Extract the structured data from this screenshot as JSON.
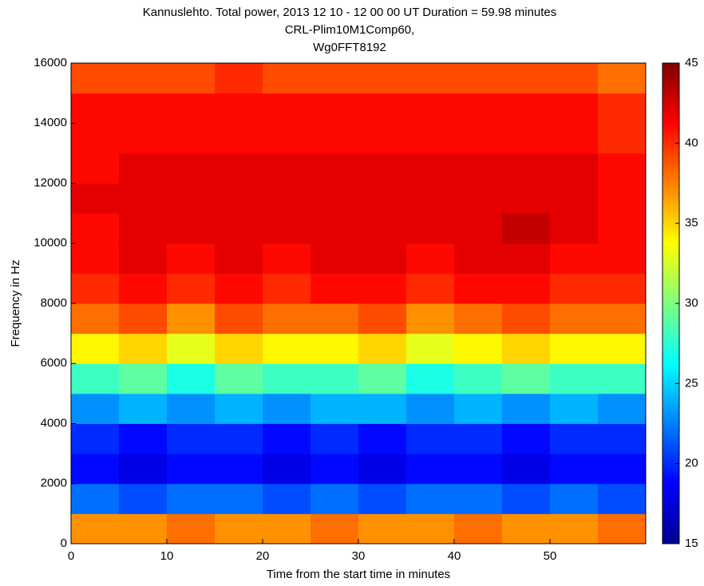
{
  "chart_data": {
    "type": "heatmap",
    "title": [
      "Kannuslehto. Total power, 2013 12 10 - 12 00 00 UT  Duration = 59.98 minutes",
      "CRL-Plim10M1Comp60,",
      "Wg0FFT8192"
    ],
    "x_label": "Time from the start time in minutes",
    "y_label": "Frequency in Hz",
    "colormap": "jet",
    "x_bins": [
      0,
      5,
      10,
      15,
      20,
      25,
      30,
      35,
      40,
      45,
      50,
      55,
      60
    ],
    "y_bins": [
      0,
      1000,
      2000,
      3000,
      4000,
      5000,
      6000,
      7000,
      8000,
      9000,
      10000,
      11000,
      12000,
      13000,
      14000,
      15000,
      16000
    ],
    "z": [
      [
        37,
        37,
        38,
        37,
        37,
        38,
        37,
        37,
        38,
        37,
        37,
        38
      ],
      [
        22,
        21,
        22,
        22,
        21,
        22,
        21,
        22,
        22,
        21,
        22,
        21
      ],
      [
        19,
        18,
        19,
        19,
        18,
        19,
        18,
        19,
        19,
        18,
        19,
        19
      ],
      [
        20,
        19,
        20,
        20,
        19,
        20,
        19,
        20,
        20,
        19,
        20,
        20
      ],
      [
        23,
        24,
        23,
        24,
        23,
        24,
        24,
        23,
        24,
        23,
        24,
        23
      ],
      [
        28,
        29,
        27,
        29,
        28,
        28,
        29,
        27,
        28,
        29,
        28,
        28
      ],
      [
        34,
        35,
        33,
        35,
        34,
        34,
        35,
        33,
        34,
        35,
        34,
        34
      ],
      [
        38,
        39,
        37,
        39,
        38,
        38,
        39,
        37,
        38,
        39,
        38,
        38
      ],
      [
        40,
        41,
        40,
        41,
        40,
        41,
        41,
        40,
        41,
        41,
        40,
        40
      ],
      [
        41,
        42,
        41,
        42,
        41,
        42,
        42,
        41,
        42,
        42,
        41,
        41
      ],
      [
        41,
        42,
        42,
        42,
        42,
        42,
        42,
        42,
        42,
        43,
        42,
        41
      ],
      [
        42,
        42,
        42,
        42,
        42,
        42,
        42,
        42,
        42,
        42,
        42,
        41
      ],
      [
        41,
        42,
        42,
        42,
        42,
        42,
        42,
        42,
        42,
        42,
        42,
        41
      ],
      [
        41,
        41,
        41,
        41,
        41,
        41,
        41,
        41,
        41,
        41,
        41,
        40
      ],
      [
        41,
        41,
        41,
        41,
        41,
        41,
        41,
        41,
        41,
        41,
        41,
        40
      ],
      [
        39,
        39,
        39,
        40,
        39,
        39,
        39,
        39,
        39,
        39,
        39,
        38
      ]
    ],
    "xlim": [
      0,
      60
    ],
    "xticks": [
      0,
      10,
      20,
      30,
      40,
      50
    ],
    "ylim": [
      0,
      16000
    ],
    "yticks": [
      0,
      2000,
      4000,
      6000,
      8000,
      10000,
      12000,
      14000,
      16000
    ],
    "clim": [
      15,
      45
    ],
    "cticks": [
      15,
      20,
      25,
      30,
      35,
      40,
      45
    ]
  }
}
